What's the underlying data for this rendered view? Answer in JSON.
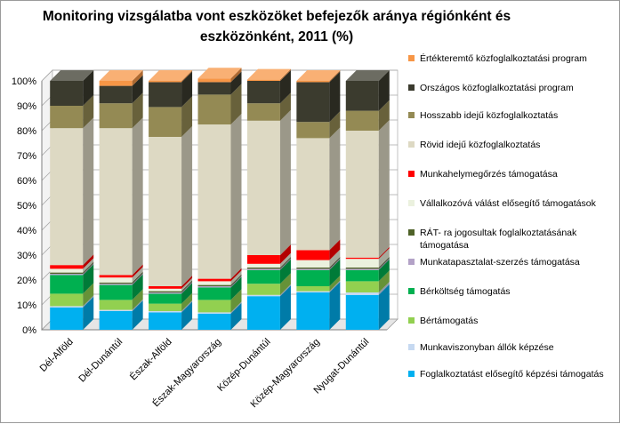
{
  "chart_data": {
    "type": "bar",
    "stacked": true,
    "three_d": true,
    "title": "Monitoring vizsgálatba vont eszközöket befejezők aránya régiónként és eszközönként, 2011 (%)",
    "xlabel": "",
    "ylabel": "",
    "ylim": [
      0,
      100
    ],
    "yticks": [
      "0%",
      "10%",
      "20%",
      "30%",
      "40%",
      "50%",
      "60%",
      "70%",
      "80%",
      "90%",
      "100%"
    ],
    "grid": true,
    "legend_position": "right",
    "categories": [
      "Dél-Alföld",
      "Dél-Dunántúl",
      "Észak-Alföld",
      "Észak-Magyarország",
      "Közép-Dunántúl",
      "Közép-Magyarország",
      "Nyugat-Dunántúl"
    ],
    "series": [
      {
        "name": "Foglalkoztatást elősegítő képzési támogatás",
        "color": "#00B0F0",
        "values": [
          9,
          7.5,
          7,
          6.5,
          13.5,
          15,
          14
        ]
      },
      {
        "name": "Munkaviszonyban állók képzése",
        "color": "#C6D9F1",
        "values": [
          0.5,
          0.5,
          0.5,
          0.5,
          0.5,
          0.5,
          1
        ]
      },
      {
        "name": "Bértámogatás",
        "color": "#92D050",
        "values": [
          5,
          4,
          3,
          5,
          4.5,
          2,
          4.5
        ]
      },
      {
        "name": "Bérköltség támogatás",
        "color": "#00B050",
        "values": [
          7.5,
          6,
          4,
          5,
          5.5,
          6.5,
          4.5
        ]
      },
      {
        "name": "Munkatapasztalat-szerzés támogatása",
        "color": "#B3A2C7",
        "values": [
          0.5,
          0.5,
          0.5,
          0.5,
          0.5,
          0.5,
          0.5
        ]
      },
      {
        "name": "RÁT- ra jogosultak foglalkoztatásának támogatása",
        "color": "#4F6228",
        "values": [
          0.5,
          0.5,
          0.5,
          0.5,
          0.5,
          0.5,
          0.5
        ]
      },
      {
        "name": "Vállalkozóvá válást elősegítő támogatások",
        "color": "#EBF1DE",
        "values": [
          1.5,
          2,
          1,
          1.5,
          1.5,
          3,
          3.5
        ]
      },
      {
        "name": "Munkahelymegőrzés támogatása",
        "color": "#FF0000",
        "values": [
          1.5,
          1,
          1,
          1,
          3.5,
          4,
          0.5
        ]
      },
      {
        "name": "Rövid idejű közfoglalkoztatás",
        "color": "#DDD9C3",
        "values": [
          55,
          59,
          60,
          62,
          54,
          45,
          51
        ]
      },
      {
        "name": "Hosszabb idejű közfoglalkoztatás",
        "color": "#948A54",
        "values": [
          9,
          10,
          12,
          12,
          7,
          6.5,
          8
        ]
      },
      {
        "name": "Országos közfoglalkoztatási program",
        "color": "#3B3B2E",
        "values": [
          10,
          7,
          10,
          5,
          9,
          16,
          12
        ]
      },
      {
        "name": "Értékteremtő közfoglalkoztatási program",
        "color": "#F79646",
        "values": [
          0,
          2,
          0.5,
          1.5,
          0.5,
          0.5,
          0
        ]
      }
    ]
  }
}
